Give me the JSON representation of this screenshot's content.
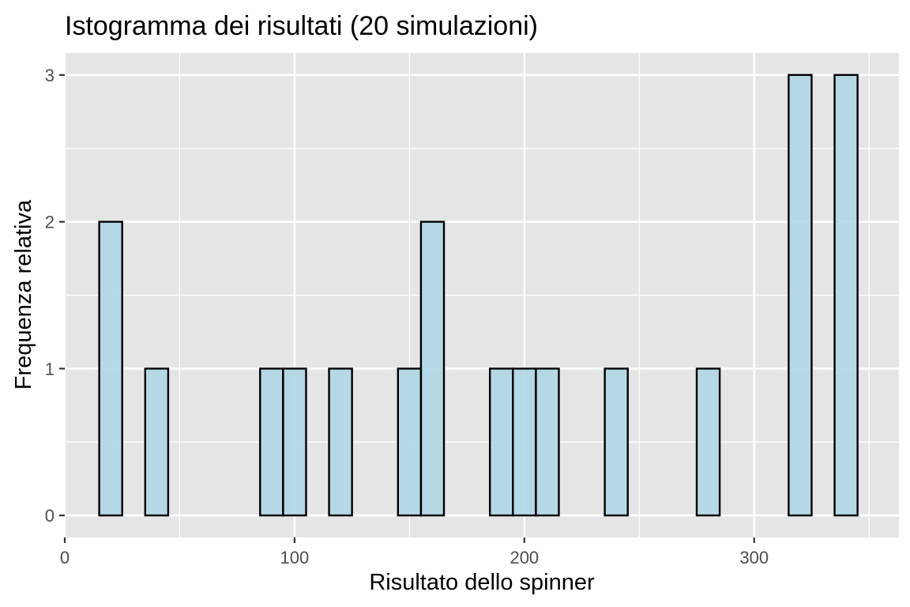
{
  "chart_data": {
    "type": "bar",
    "title": "Istogramma dei risultati (20 simulazioni)",
    "xlabel": "Risultato dello spinner",
    "ylabel": "Frequenza relativa",
    "xlim": [
      0,
      363
    ],
    "ylim": [
      -0.15,
      3.15
    ],
    "x_ticks": [
      0,
      100,
      200,
      300
    ],
    "x_tick_labels": [
      "0",
      "100",
      "200",
      "300"
    ],
    "y_ticks": [
      0,
      1,
      2,
      3
    ],
    "y_tick_labels": [
      "0",
      "1",
      "2",
      "3"
    ],
    "bin_width": 10,
    "bins": [
      {
        "start": 15,
        "end": 25,
        "count": 2
      },
      {
        "start": 25,
        "end": 35,
        "count": 0
      },
      {
        "start": 35,
        "end": 45,
        "count": 1
      },
      {
        "start": 45,
        "end": 55,
        "count": 0
      },
      {
        "start": 55,
        "end": 65,
        "count": 0
      },
      {
        "start": 65,
        "end": 75,
        "count": 0
      },
      {
        "start": 75,
        "end": 85,
        "count": 0
      },
      {
        "start": 85,
        "end": 95,
        "count": 1
      },
      {
        "start": 95,
        "end": 105,
        "count": 1
      },
      {
        "start": 105,
        "end": 115,
        "count": 0
      },
      {
        "start": 115,
        "end": 125,
        "count": 1
      },
      {
        "start": 125,
        "end": 135,
        "count": 0
      },
      {
        "start": 135,
        "end": 145,
        "count": 0
      },
      {
        "start": 145,
        "end": 155,
        "count": 1
      },
      {
        "start": 155,
        "end": 165,
        "count": 2
      },
      {
        "start": 165,
        "end": 175,
        "count": 0
      },
      {
        "start": 175,
        "end": 185,
        "count": 0
      },
      {
        "start": 185,
        "end": 195,
        "count": 1
      },
      {
        "start": 195,
        "end": 205,
        "count": 1
      },
      {
        "start": 205,
        "end": 215,
        "count": 1
      },
      {
        "start": 215,
        "end": 225,
        "count": 0
      },
      {
        "start": 225,
        "end": 235,
        "count": 0
      },
      {
        "start": 235,
        "end": 245,
        "count": 1
      },
      {
        "start": 245,
        "end": 255,
        "count": 0
      },
      {
        "start": 255,
        "end": 265,
        "count": 0
      },
      {
        "start": 265,
        "end": 275,
        "count": 0
      },
      {
        "start": 275,
        "end": 285,
        "count": 1
      },
      {
        "start": 285,
        "end": 295,
        "count": 0
      },
      {
        "start": 295,
        "end": 305,
        "count": 0
      },
      {
        "start": 305,
        "end": 315,
        "count": 0
      },
      {
        "start": 315,
        "end": 325,
        "count": 3
      },
      {
        "start": 325,
        "end": 335,
        "count": 0
      },
      {
        "start": 335,
        "end": 345,
        "count": 3
      }
    ],
    "grid": true,
    "colors": {
      "panel_background": "#e5e5e5",
      "grid_line": "#ffffff",
      "bar_fill": "#b1d7e6",
      "bar_outline": "#000000",
      "tick_label": "#4d4d4d"
    }
  }
}
